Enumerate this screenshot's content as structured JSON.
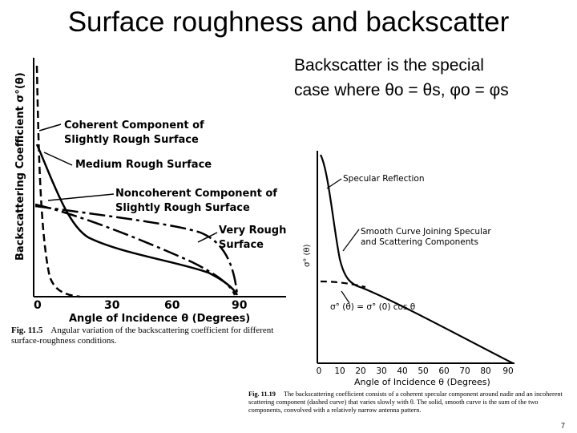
{
  "title": "Surface roughness and backscatter",
  "note": {
    "line1": "Backscatter is the special",
    "line2": "case where θo = θs, φo = φs"
  },
  "figure1": {
    "ylabel": "Backscattering Coefficient σ°(θ)",
    "xlabel": "Angle of Incidence θ (Degrees)",
    "ticks": [
      "0",
      "30",
      "60",
      "90"
    ],
    "label_coherent_1": "Coherent Component of",
    "label_coherent_2": "Slightly Rough Surface",
    "label_medium": "Medium Rough Surface",
    "label_noncoherent_1": "Noncoherent Component of",
    "label_noncoherent_2": "Slightly Rough Surface",
    "label_veryrough_1": "Very Rough",
    "label_veryrough_2": "Surface",
    "caption_num": "Fig. 11.5",
    "caption_text": "Angular variation of the backscattering coefficient for different surface-roughness conditions."
  },
  "figure2": {
    "ylabel": "σ° (θ)",
    "xlabel": "Angle of Incidence θ (Degrees)",
    "ticks": [
      "0",
      "10",
      "20",
      "30",
      "40",
      "50",
      "60",
      "70",
      "80",
      "90"
    ],
    "label_specular": "Specular Reflection",
    "label_smooth_1": "Smooth Curve Joining Specular",
    "label_smooth_2": "and Scattering Components",
    "formula": "σ° (θ) = σ° (0) cos θ",
    "caption_num": "Fig. 11.19",
    "caption_text": "The backscattering coefficient consists of a coherent specular component around nadir and an incoherent scattering component (dashed curve) that varies slowly with θ. The solid, smooth curve is the sum of the two components, convolved with a relatively narrow antenna pattern."
  },
  "page_number": "7"
}
